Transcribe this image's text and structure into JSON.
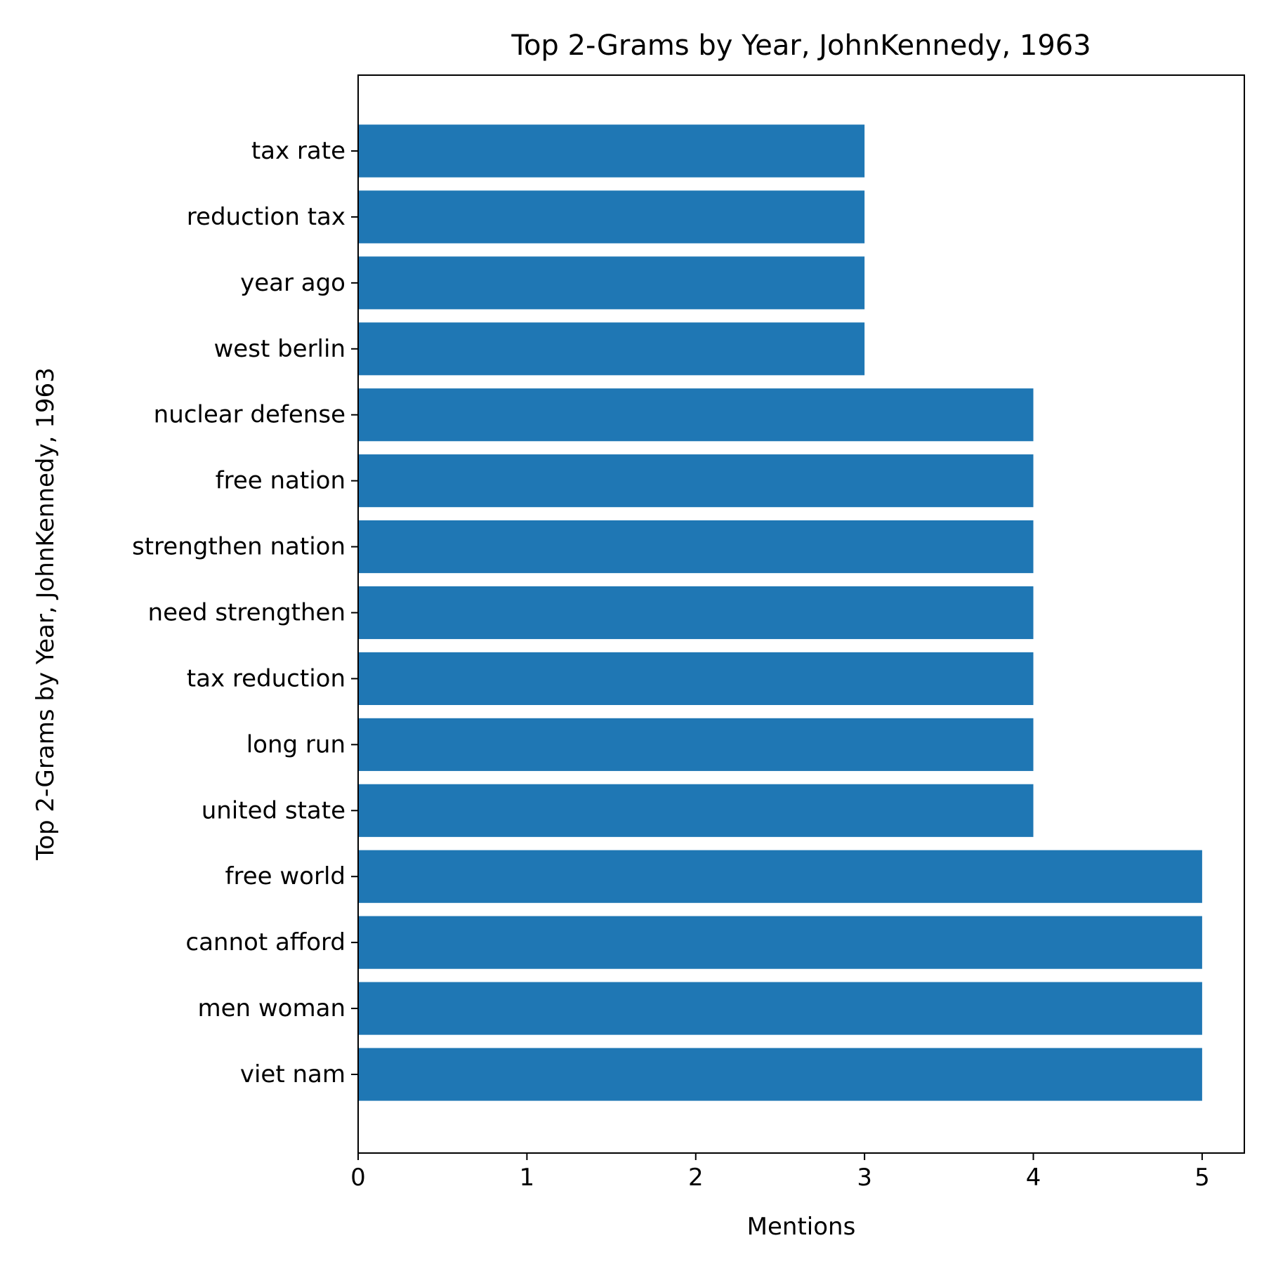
{
  "chart_data": {
    "type": "bar",
    "orientation": "horizontal",
    "title": "Top 2-Grams by Year, JohnKennedy, 1963",
    "xlabel": "Mentions",
    "ylabel": "Top 2-Grams by Year, JohnKennedy, 1963",
    "categories": [
      "viet nam",
      "men woman",
      "cannot afford",
      "free world",
      "united state",
      "long run",
      "tax reduction",
      "need strengthen",
      "strengthen nation",
      "free nation",
      "nuclear defense",
      "west berlin",
      "year ago",
      "reduction tax",
      "tax rate"
    ],
    "values": [
      5,
      5,
      5,
      5,
      4,
      4,
      4,
      4,
      4,
      4,
      4,
      3,
      3,
      3,
      3
    ],
    "xlim": [
      0,
      5.25
    ],
    "xticks": [
      0,
      1,
      2,
      3,
      4,
      5
    ],
    "grid": false,
    "bar_color": "#1f77b4"
  }
}
